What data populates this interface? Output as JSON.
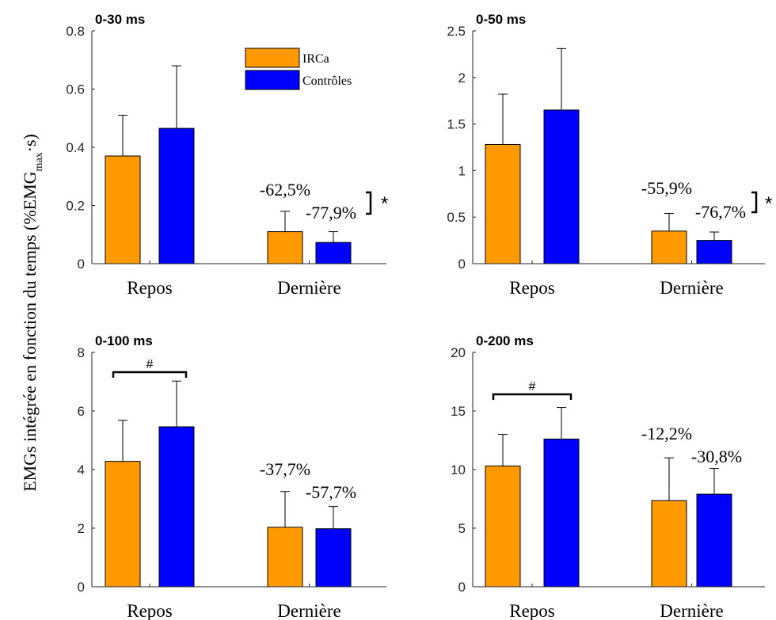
{
  "y_axis_label": {
    "main": "EMGs intégrée en fonction du temps  (%EMG",
    "sub": "max",
    "tail": "·s)"
  },
  "legend": [
    {
      "label": "IRCa",
      "color": "#FF9900"
    },
    {
      "label": "Contrôles",
      "color": "#0000FF"
    }
  ],
  "chart_data": [
    {
      "type": "bar",
      "title": "0-30 ms",
      "categories": [
        "Repos",
        "Dernière"
      ],
      "ylim": [
        0,
        0.8
      ],
      "yticks": [
        0,
        0.2,
        0.4,
        0.6,
        0.8
      ],
      "ytick_labels": [
        "0",
        "0.2",
        "0.4",
        "0.6",
        "0.8"
      ],
      "series": [
        {
          "name": "IRCa",
          "color": "#FF9900",
          "values": [
            0.37,
            0.11
          ],
          "errors": [
            0.14,
            0.07
          ]
        },
        {
          "name": "Contrôles",
          "color": "#0000FF",
          "values": [
            0.465,
            0.073
          ],
          "errors": [
            0.215,
            0.037
          ]
        }
      ],
      "annotations": [
        "-62,5%",
        "-77,9%"
      ],
      "significance": "*",
      "group_marker": ""
    },
    {
      "type": "bar",
      "title": "0-50 ms",
      "categories": [
        "Repos",
        "Dernière"
      ],
      "ylim": [
        0,
        2.5
      ],
      "yticks": [
        0,
        0.5,
        1,
        1.5,
        2,
        2.5
      ],
      "ytick_labels": [
        "0",
        "0.5",
        "1",
        "1.5",
        "2",
        "2.5"
      ],
      "series": [
        {
          "name": "IRCa",
          "color": "#FF9900",
          "values": [
            1.28,
            0.35
          ],
          "errors": [
            0.54,
            0.19
          ]
        },
        {
          "name": "Contrôles",
          "color": "#0000FF",
          "values": [
            1.65,
            0.25
          ],
          "errors": [
            0.66,
            0.09
          ]
        }
      ],
      "annotations": [
        "-55,9%",
        "-76,7%"
      ],
      "significance": "*",
      "group_marker": ""
    },
    {
      "type": "bar",
      "title": "0-100 ms",
      "categories": [
        "Repos",
        "Dernière"
      ],
      "ylim": [
        0,
        8
      ],
      "yticks": [
        0,
        2,
        4,
        6,
        8
      ],
      "ytick_labels": [
        "0",
        "2",
        "4",
        "6",
        "8"
      ],
      "series": [
        {
          "name": "IRCa",
          "color": "#FF9900",
          "values": [
            4.28,
            2.03
          ],
          "errors": [
            1.4,
            1.22
          ]
        },
        {
          "name": "Contrôles",
          "color": "#0000FF",
          "values": [
            5.46,
            1.98
          ],
          "errors": [
            1.56,
            0.76
          ]
        }
      ],
      "annotations": [
        "-37,7%",
        "-57,7%"
      ],
      "significance": "",
      "group_marker": "#"
    },
    {
      "type": "bar",
      "title": "0-200 ms",
      "categories": [
        "Repos",
        "Dernière"
      ],
      "ylim": [
        0,
        20
      ],
      "yticks": [
        0,
        5,
        10,
        15,
        20
      ],
      "ytick_labels": [
        "0",
        "5",
        "10",
        "15",
        "20"
      ],
      "series": [
        {
          "name": "IRCa",
          "color": "#FF9900",
          "values": [
            10.3,
            7.35
          ],
          "errors": [
            2.7,
            3.65
          ]
        },
        {
          "name": "Contrôles",
          "color": "#0000FF",
          "values": [
            12.6,
            7.9
          ],
          "errors": [
            2.7,
            2.2
          ]
        }
      ],
      "annotations": [
        "-12,2%",
        "-30,8%"
      ],
      "significance": "",
      "group_marker": "#"
    }
  ]
}
